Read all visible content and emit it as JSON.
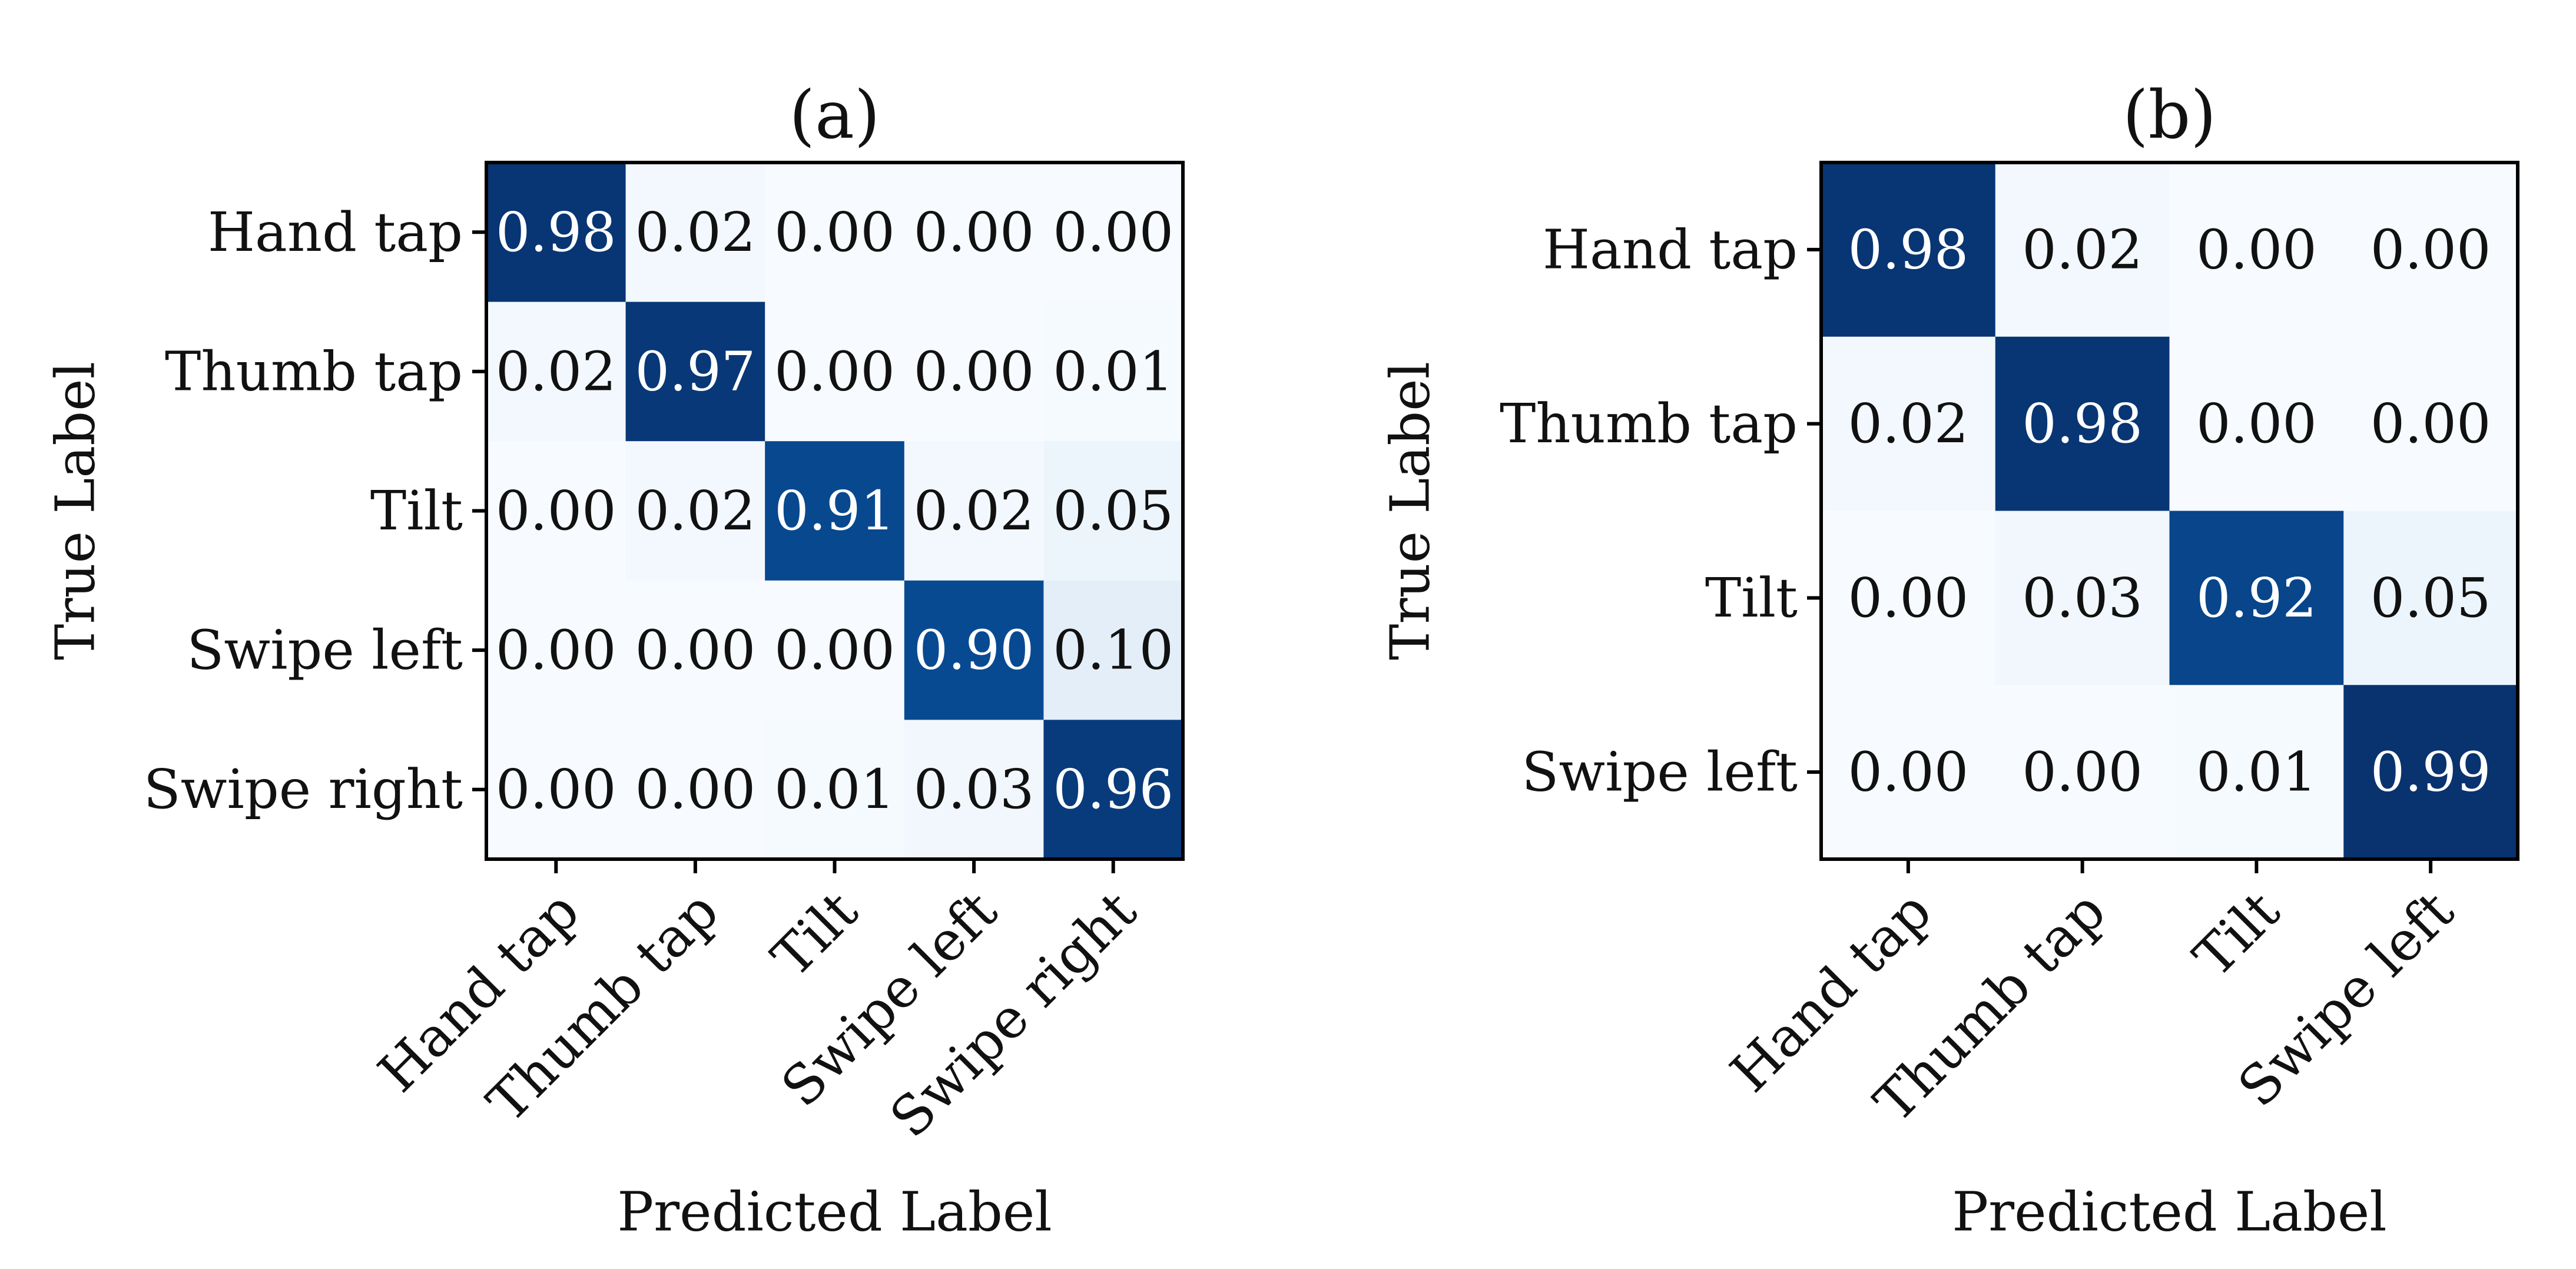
{
  "chart_data": [
    {
      "type": "heatmap",
      "title": "(a)",
      "xlabel": "Predicted Label",
      "ylabel": "True Label",
      "x_categories": [
        "Hand tap",
        "Thumb tap",
        "Tilt",
        "Swipe left",
        "Swipe right"
      ],
      "y_categories": [
        "Hand tap",
        "Thumb tap",
        "Tilt",
        "Swipe left",
        "Swipe right"
      ],
      "values": [
        [
          0.98,
          0.02,
          0.0,
          0.0,
          0.0
        ],
        [
          0.02,
          0.97,
          0.0,
          0.0,
          0.01
        ],
        [
          0.0,
          0.02,
          0.91,
          0.02,
          0.05
        ],
        [
          0.0,
          0.0,
          0.0,
          0.9,
          0.1
        ],
        [
          0.0,
          0.0,
          0.01,
          0.03,
          0.96
        ]
      ],
      "value_labels": [
        [
          "0.98",
          "0.02",
          "0.00",
          "0.00",
          "0.00"
        ],
        [
          "0.02",
          "0.97",
          "0.00",
          "0.00",
          "0.01"
        ],
        [
          "0.00",
          "0.02",
          "0.91",
          "0.02",
          "0.05"
        ],
        [
          "0.00",
          "0.00",
          "0.00",
          "0.90",
          "0.10"
        ],
        [
          "0.00",
          "0.00",
          "0.01",
          "0.03",
          "0.96"
        ]
      ],
      "colormap": "Blues",
      "vmin": 0,
      "vmax": 1
    },
    {
      "type": "heatmap",
      "title": "(b)",
      "xlabel": "Predicted Label",
      "ylabel": "True Label",
      "x_categories": [
        "Hand tap",
        "Thumb tap",
        "Tilt",
        "Swipe left"
      ],
      "y_categories": [
        "Hand tap",
        "Thumb tap",
        "Tilt",
        "Swipe left"
      ],
      "values": [
        [
          0.98,
          0.02,
          0.0,
          0.0
        ],
        [
          0.02,
          0.98,
          0.0,
          0.0
        ],
        [
          0.0,
          0.03,
          0.92,
          0.05
        ],
        [
          0.0,
          0.0,
          0.01,
          0.99
        ]
      ],
      "value_labels": [
        [
          "0.98",
          "0.02",
          "0.00",
          "0.00"
        ],
        [
          "0.02",
          "0.98",
          "0.00",
          "0.00"
        ],
        [
          "0.00",
          "0.03",
          "0.92",
          "0.05"
        ],
        [
          "0.00",
          "0.00",
          "0.01",
          "0.99"
        ]
      ],
      "colormap": "Blues",
      "vmin": 0,
      "vmax": 1
    }
  ],
  "colors": {
    "blues_light": "#f7fbff",
    "blues_dark": "#08306b",
    "text_dark": "#111111",
    "text_light": "#ffffff",
    "frame": "#000000"
  }
}
